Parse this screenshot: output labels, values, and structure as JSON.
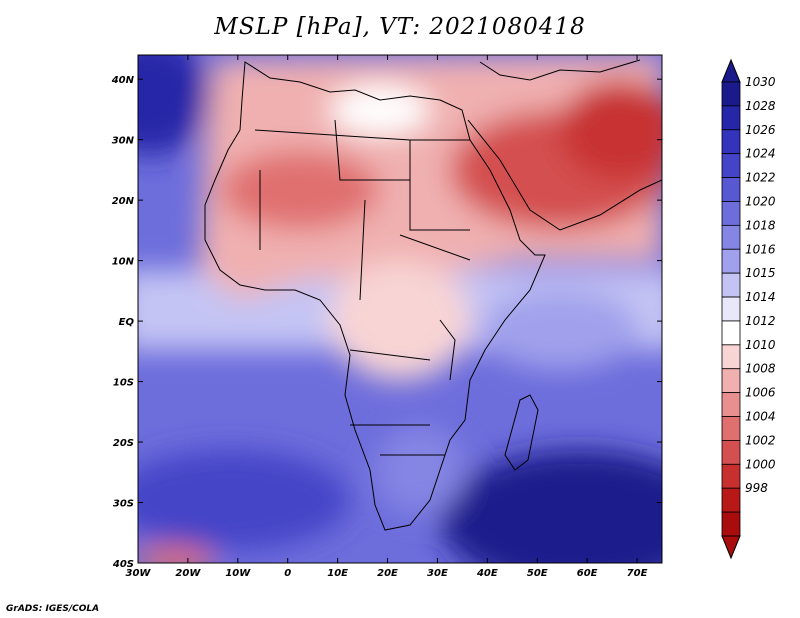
{
  "title": "MSLP [hPa], VT: 2021080418",
  "credit": "GrADS: IGES/COLA",
  "map": {
    "lat_labels": [
      "40N",
      "30N",
      "20N",
      "10N",
      "EQ",
      "10S",
      "20S",
      "30S",
      "40S"
    ],
    "lon_labels": [
      "30W",
      "20W",
      "10W",
      "0",
      "10E",
      "20E",
      "30E",
      "40E",
      "50E",
      "60E",
      "70E"
    ],
    "lat_range": [
      -40,
      44
    ],
    "lon_range": [
      -30,
      75
    ]
  },
  "colorbar": {
    "levels": [
      "1030",
      "1028",
      "1026",
      "1024",
      "1022",
      "1020",
      "1018",
      "1016",
      "1015",
      "1014",
      "1012",
      "1010",
      "1008",
      "1006",
      "1004",
      "1002",
      "1000",
      "998"
    ],
    "colors": [
      "#1a1a8c",
      "#2626a8",
      "#3333bb",
      "#4444c8",
      "#5858d2",
      "#6d6ddc",
      "#8585e4",
      "#a0a0ec",
      "#c4c4f4",
      "#e8e8fa",
      "#ffffff",
      "#f8d4d4",
      "#f0b0b0",
      "#e89090",
      "#e07070",
      "#d45050",
      "#c83030",
      "#b81818",
      "#a80c0c"
    ],
    "arrow_top": "#1a1a8c",
    "arrow_bottom": "#a80c0c"
  }
}
